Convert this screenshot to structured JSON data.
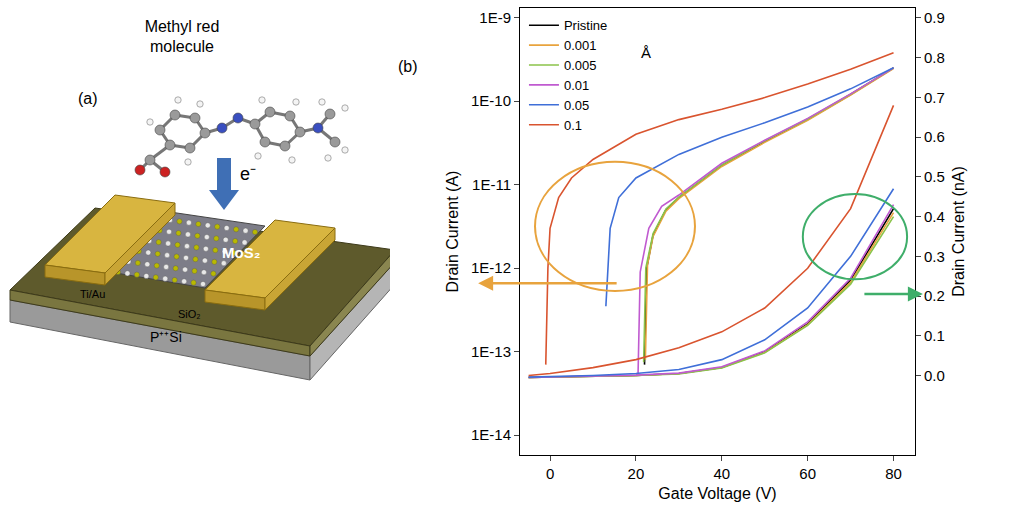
{
  "diagram": {
    "label": "(a)",
    "molecule_label": [
      "Methyl red",
      "molecule"
    ],
    "electron": "e⁻",
    "channel": "MoS₂",
    "contacts": "Ti/Au",
    "oxide": "SiO₂",
    "substrate": "P⁺⁺Si"
  },
  "chart_data": {
    "type": "line",
    "panel_label": "(b)",
    "x_label": "Gate Voltage (V)",
    "y_label": "Drain Current (A)",
    "y2_label": "Drain Current (nA)",
    "annotations": [
      "Å"
    ],
    "log": "y",
    "legend": "top-left",
    "xlim": [
      -7,
      85
    ],
    "xticks": [
      0,
      20,
      40,
      60,
      80
    ],
    "ylim": [
      5.8e-15,
      1.3e-09
    ],
    "yticks": [
      {
        "value": 1e-14,
        "label": "1E-14"
      },
      {
        "value": 1e-13,
        "label": "1E-13"
      },
      {
        "value": 1e-12,
        "label": "1E-12"
      },
      {
        "value": 1e-11,
        "label": "1E-11"
      },
      {
        "value": 1e-10,
        "label": "1E-10"
      },
      {
        "value": 1e-09,
        "label": "1E-9"
      }
    ],
    "y2lim": [
      -0.2,
      0.925
    ],
    "y2ticks": [
      {
        "value": 0,
        "label": "0.0"
      },
      0.1,
      0.2,
      0.3,
      0.4,
      0.5,
      0.6,
      0.7,
      0.8,
      0.9
    ],
    "series": [
      {
        "name": "Pristine",
        "color": "#000000",
        "x": [
          22,
          22.5,
          24,
          27,
          30,
          40,
          50,
          60,
          70,
          80
        ],
        "values": [
          7e-14,
          1e-12,
          2.5e-12,
          5e-12,
          7e-12,
          1.7e-11,
          3.3e-11,
          6e-11,
          1.2e-10,
          2.5e-10
        ]
      },
      {
        "name": "0.001",
        "color": "#e8a33d",
        "x": [
          22.2,
          22.7,
          24,
          27,
          30,
          40,
          50,
          60,
          70,
          80
        ],
        "values": [
          8e-14,
          1.1e-12,
          2.4e-12,
          4.8e-12,
          6.8e-12,
          1.65e-11,
          3.2e-11,
          5.9e-11,
          1.18e-10,
          2.45e-10
        ]
      },
      {
        "name": "0.005",
        "color": "#8bc34a",
        "x": [
          21.8,
          22.3,
          24,
          27,
          30,
          40,
          50,
          60,
          70,
          80
        ],
        "values": [
          7.5e-14,
          1e-12,
          2.6e-12,
          5.1e-12,
          7.1e-12,
          1.72e-11,
          3.35e-11,
          6.1e-11,
          1.21e-10,
          2.5e-10
        ]
      },
      {
        "name": "0.01",
        "color": "#c05ad0",
        "x": [
          20.5,
          21,
          23,
          26,
          30,
          40,
          50,
          60,
          70,
          80
        ],
        "values": [
          5.5e-14,
          9e-13,
          3e-12,
          5.5e-12,
          7.5e-12,
          1.8e-11,
          3.4e-11,
          6.2e-11,
          1.22e-10,
          2.5e-10
        ]
      },
      {
        "name": "0.05",
        "color": "#3f6fd8",
        "x": [
          13,
          14,
          16,
          20,
          30,
          40,
          50,
          60,
          70,
          80
        ],
        "values": [
          3.5e-13,
          3e-12,
          7e-12,
          1.2e-11,
          2.3e-11,
          3.7e-11,
          5.5e-11,
          8.5e-11,
          1.4e-10,
          2.5e-10
        ]
      },
      {
        "name": "0.1",
        "color": "#d9542f",
        "x": [
          -1,
          -0.5,
          0,
          2,
          5,
          10,
          20,
          30,
          40,
          50,
          60,
          70,
          80
        ],
        "values": [
          7e-14,
          1e-12,
          3e-12,
          7e-12,
          1.2e-11,
          2e-11,
          4e-11,
          6e-11,
          8e-11,
          1.1e-10,
          1.6e-10,
          2.4e-10,
          3.8e-10
        ]
      },
      {
        "name": "Pristine",
        "color": "#000000",
        "axis": "y2",
        "x": [
          -5,
          0,
          10,
          20,
          30,
          40,
          50,
          60,
          70,
          80
        ],
        "values": [
          -0.005,
          -0.004,
          -0.002,
          0,
          0.005,
          0.02,
          0.06,
          0.13,
          0.24,
          0.42
        ]
      },
      {
        "name": "0.001",
        "color": "#e8a33d",
        "axis": "y2",
        "x": [
          -5,
          0,
          10,
          20,
          30,
          40,
          50,
          60,
          70,
          80
        ],
        "values": [
          -0.005,
          -0.004,
          -0.002,
          0,
          0.005,
          0.02,
          0.058,
          0.128,
          0.235,
          0.41
        ]
      },
      {
        "name": "0.005",
        "color": "#8bc34a",
        "axis": "y2",
        "x": [
          -5,
          0,
          10,
          20,
          30,
          40,
          50,
          60,
          70,
          80
        ],
        "values": [
          -0.005,
          -0.004,
          -0.002,
          0,
          0.004,
          0.019,
          0.057,
          0.126,
          0.23,
          0.4
        ]
      },
      {
        "name": "0.01",
        "color": "#c05ad0",
        "axis": "y2",
        "x": [
          -5,
          0,
          10,
          20,
          30,
          40,
          50,
          60,
          70,
          80
        ],
        "values": [
          -0.005,
          -0.004,
          -0.002,
          0.001,
          0.006,
          0.022,
          0.062,
          0.135,
          0.245,
          0.43
        ]
      },
      {
        "name": "0.05",
        "color": "#3f6fd8",
        "axis": "y2",
        "x": [
          -5,
          0,
          10,
          20,
          30,
          40,
          50,
          60,
          70,
          80
        ],
        "values": [
          -0.004,
          -0.003,
          0,
          0.005,
          0.015,
          0.04,
          0.09,
          0.17,
          0.3,
          0.47
        ]
      },
      {
        "name": "0.1",
        "color": "#d9542f",
        "axis": "y2",
        "x": [
          -5,
          0,
          10,
          20,
          30,
          40,
          50,
          60,
          70,
          80
        ],
        "values": [
          0,
          0.005,
          0.02,
          0.04,
          0.07,
          0.11,
          0.17,
          0.27,
          0.42,
          0.68
        ]
      }
    ]
  }
}
